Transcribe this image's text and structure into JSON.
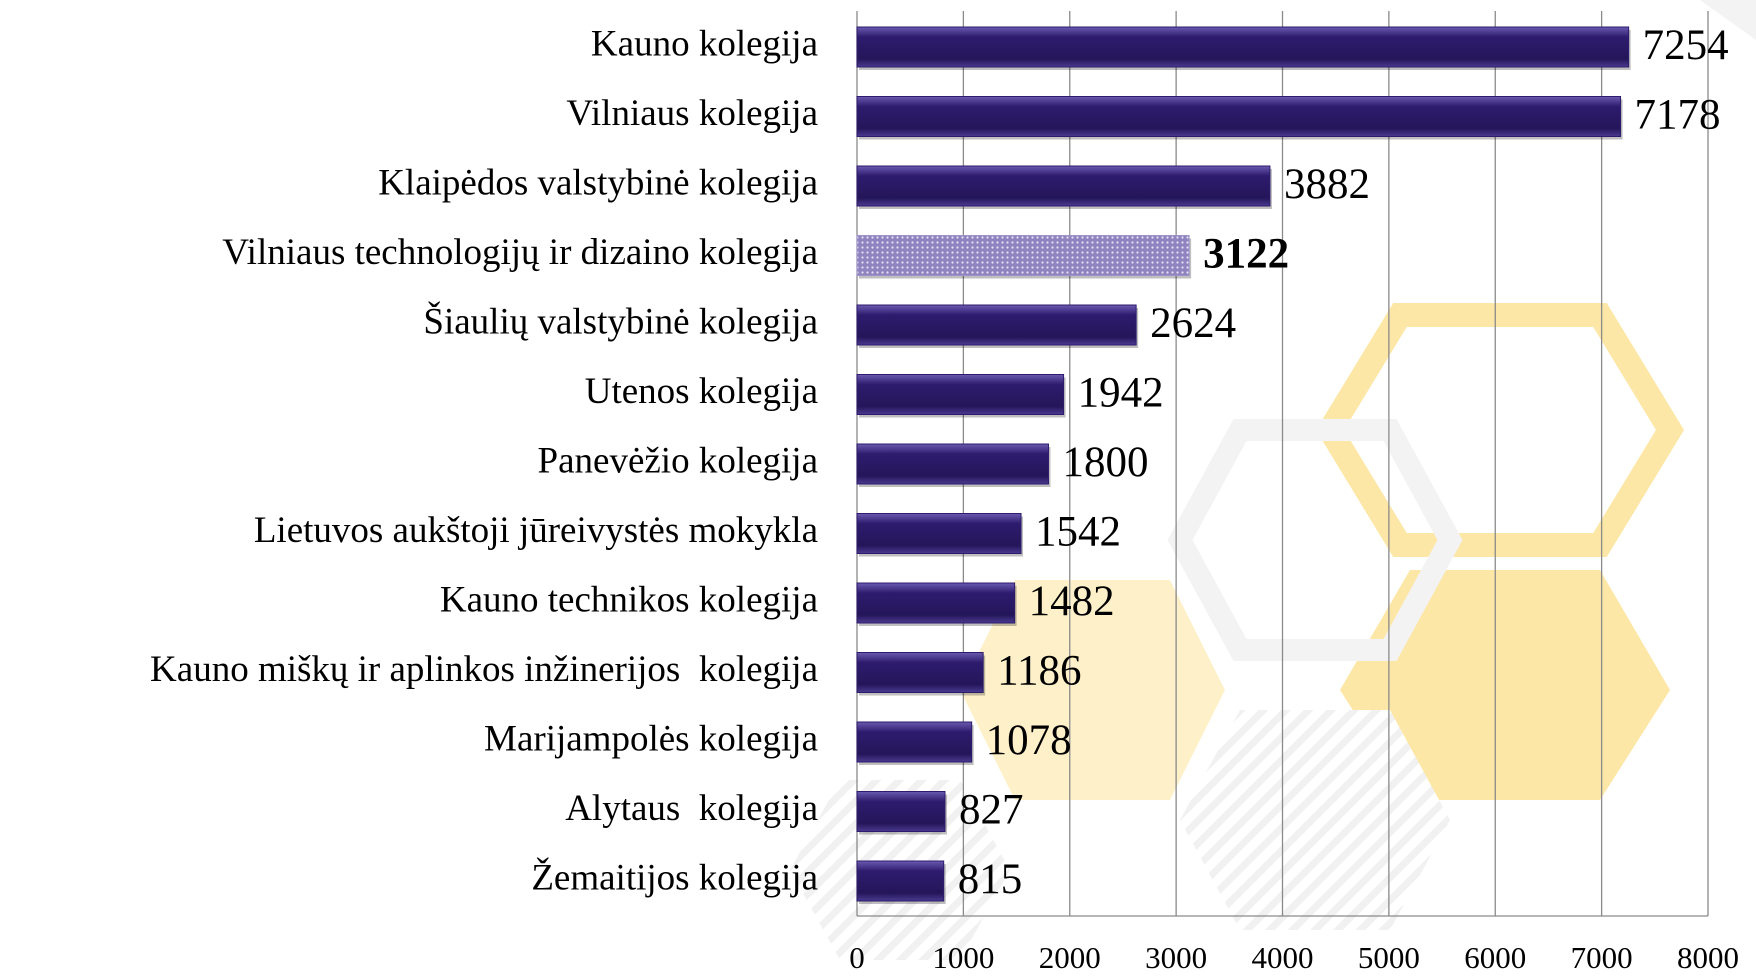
{
  "chart_data": {
    "type": "barh",
    "categories": [
      "Kauno kolegija",
      "Vilniaus kolegija",
      "Klaipėdos valstybinė kolegija",
      "Vilniaus technologijų ir dizaino kolegija",
      "Šiaulių valstybinė kolegija",
      "Utenos kolegija",
      "Panevėžio kolegija",
      "Lietuvos aukštoji jūreivystės mokykla",
      "Kauno technikos kolegija",
      "Kauno miškų ir aplinkos inžinerijos  kolegija",
      "Marijampolės kolegija",
      "Alytaus  kolegija",
      "Žemaitijos kolegija"
    ],
    "values": [
      7254,
      7178,
      3882,
      3122,
      2624,
      1942,
      1800,
      1542,
      1482,
      1186,
      1078,
      827,
      815
    ],
    "color": "#2e1b6e",
    "highlight_index": 3,
    "highlight_color": "#9d93c9",
    "xlim": [
      0,
      8000
    ],
    "xticks": [
      0,
      1000,
      2000,
      3000,
      4000,
      5000,
      6000,
      7000,
      8000
    ],
    "grid": true
  }
}
